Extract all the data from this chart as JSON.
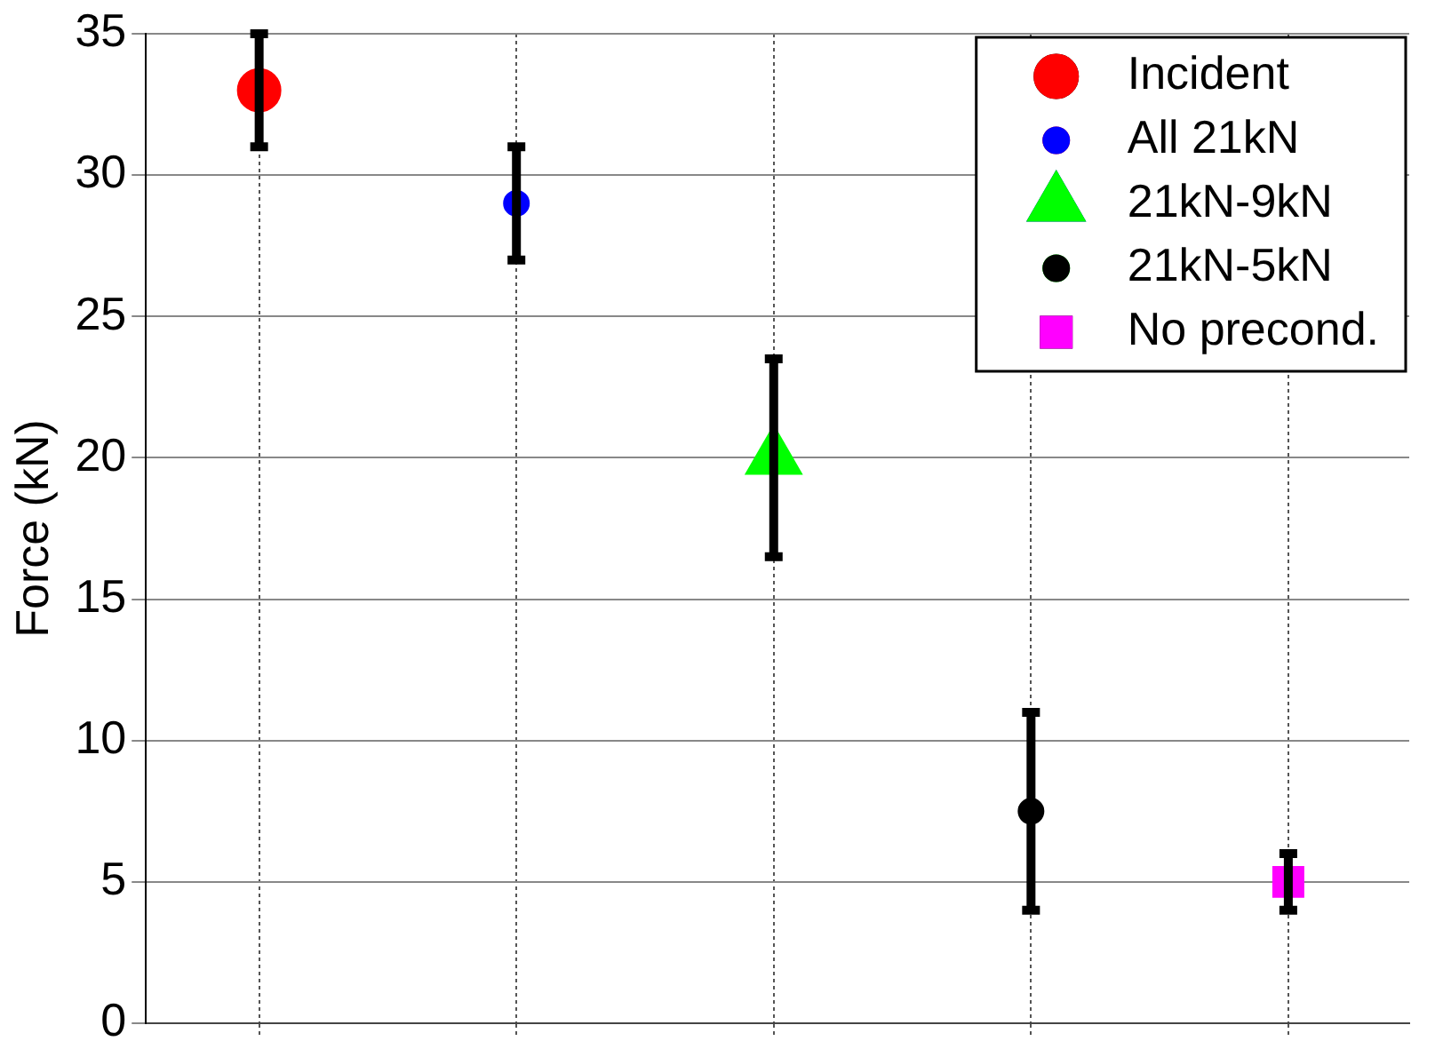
{
  "chart_data": {
    "type": "scatter",
    "ylabel": "Force (kN)",
    "categories": [
      null,
      null,
      null,
      null,
      null
    ],
    "series": [
      {
        "name": "Incident",
        "color": "#ff0000",
        "marker": "circle",
        "values": [
          33,
          null,
          null,
          null,
          null
        ],
        "errors": [
          2,
          null,
          null,
          null,
          null
        ]
      },
      {
        "name": "All 21kN",
        "color": "#0000ff",
        "marker": "circle",
        "values": [
          null,
          29,
          null,
          null,
          null
        ],
        "errors": [
          null,
          2,
          null,
          null,
          null
        ]
      },
      {
        "name": "21kN-9kN",
        "color": "#00ff00",
        "marker": "triangle",
        "values": [
          null,
          null,
          20,
          null,
          null
        ],
        "errors": [
          null,
          null,
          3.5,
          null,
          null
        ]
      },
      {
        "name": "21kN-5kN",
        "color": "#000000",
        "marker": "circle",
        "values": [
          null,
          null,
          null,
          7.5,
          null
        ],
        "errors": [
          null,
          null,
          null,
          3.5,
          null
        ]
      },
      {
        "name": "No precond.",
        "color": "#ff00ff",
        "marker": "square",
        "values": [
          null,
          null,
          null,
          null,
          5
        ],
        "errors": [
          null,
          null,
          null,
          null,
          1
        ]
      }
    ],
    "ylim": [
      0,
      35
    ],
    "yticks": [
      0,
      5,
      10,
      15,
      20,
      25,
      30,
      35
    ],
    "grid": true,
    "legend": "top right",
    "tick_labels": "y"
  }
}
